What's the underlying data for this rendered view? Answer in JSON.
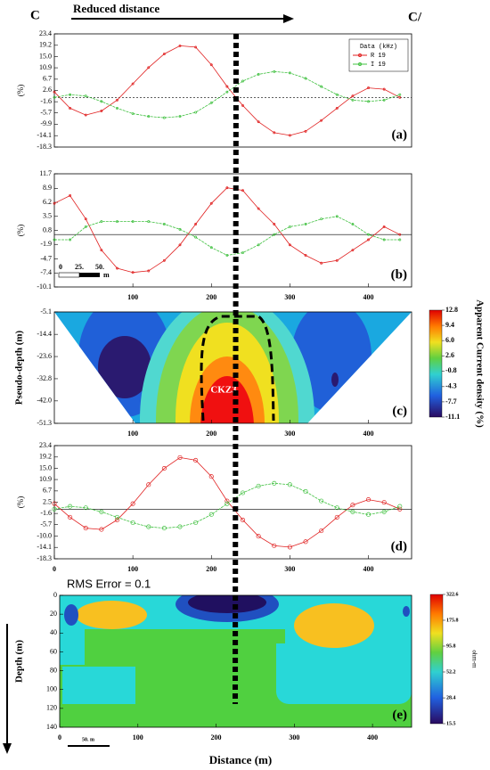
{
  "header": {
    "left": "C",
    "title": "Reduced distance",
    "right": "C/"
  },
  "chart_data": [
    {
      "type": "line",
      "label": "(a)",
      "ylabel": "(%)",
      "xlim": [
        0,
        455
      ],
      "ylim": [
        -18.3,
        23.4
      ],
      "baseline_style": "dotted",
      "yticks": [
        23.4,
        19.2,
        {
          "value": 15,
          "label": "15.0"
        },
        10.9,
        6.7,
        2.6,
        -1.6,
        -5.7,
        -9.9,
        -14.1,
        -18.3
      ],
      "legend_title": "Data (kHz)",
      "legend": "upper right",
      "x": [
        0,
        20,
        40,
        60,
        80,
        100,
        120,
        140,
        160,
        180,
        200,
        220,
        240,
        260,
        280,
        300,
        320,
        340,
        360,
        380,
        400,
        420,
        440
      ],
      "series": [
        {
          "name": "R 19",
          "color": "#e02020",
          "values": [
            2,
            -4,
            -6.5,
            -5,
            -1,
            5,
            11,
            16,
            19,
            18.5,
            12,
            4,
            -3,
            -9,
            -13,
            -14,
            -12.5,
            -8.5,
            -4,
            0.5,
            3.5,
            3,
            0
          ]
        },
        {
          "name": "I 19",
          "color": "#40c040",
          "values": [
            0,
            1,
            0.5,
            -1.5,
            -4,
            -6,
            -7,
            -7.5,
            -7,
            -5.5,
            -2,
            2,
            6,
            8.5,
            9.5,
            9,
            7,
            4,
            1,
            -1,
            -1.5,
            -1,
            1
          ]
        }
      ]
    },
    {
      "type": "line",
      "label": "(b)",
      "ylabel": "(%)",
      "xlim": [
        0,
        455
      ],
      "ylim": [
        -10.1,
        11.7
      ],
      "baseline_style": "solid",
      "yticks": [
        11.7,
        8.9,
        6.2,
        3.5,
        0.8,
        -1.9,
        -4.7,
        -7.4,
        -10.1
      ],
      "xticks": [
        100,
        200,
        300,
        400
      ],
      "scale_bar": {
        "labels": [
          "0",
          "25.",
          "50."
        ],
        "unit": "m"
      },
      "x": [
        0,
        20,
        40,
        60,
        80,
        100,
        120,
        140,
        160,
        180,
        200,
        220,
        240,
        260,
        280,
        300,
        320,
        340,
        360,
        380,
        400,
        420,
        440
      ],
      "series": [
        {
          "name": "R",
          "color": "#e02020",
          "values": [
            6,
            7.5,
            3,
            -3,
            -6.5,
            -7.3,
            -7,
            -5,
            -2,
            2,
            6,
            9,
            8.5,
            5,
            2,
            -2,
            -4,
            -5.5,
            -5,
            -3,
            -1,
            1.5,
            0
          ]
        },
        {
          "name": "I",
          "color": "#40c040",
          "values": [
            -1,
            -1,
            1.5,
            2.5,
            2.5,
            2.5,
            2.5,
            2,
            1,
            -0.5,
            -2.5,
            -4,
            -3.5,
            -2,
            0,
            1.5,
            2,
            3,
            3.5,
            2,
            0,
            -1,
            -1
          ]
        }
      ]
    },
    {
      "type": "contour",
      "label": "(c)",
      "ylabel": "Pseudo-depth (m)",
      "xlim": [
        0,
        455
      ],
      "ylim": [
        -51.3,
        -5.1
      ],
      "yticks": [
        -5.1,
        -14.4,
        -23.6,
        -32.8,
        {
          "value": -42,
          "label": "-42.0"
        },
        -51.3
      ],
      "xticks": [
        100,
        200,
        300,
        400
      ],
      "annotation": "CKZ3",
      "colorbar": {
        "label": "Apparent Current density (%)",
        "lim": [
          -11.1,
          12.8
        ],
        "ticks": [
          12.8,
          9.4,
          {
            "value": 6,
            "label": "6.0"
          },
          2.6,
          -0.8,
          -4.3,
          -7.7,
          -11.1
        ]
      }
    },
    {
      "type": "line",
      "label": "(d)",
      "ylabel": "(%)",
      "xlim": [
        0,
        455
      ],
      "ylim": [
        -18.3,
        23.4
      ],
      "baseline_style": "solid",
      "yticks": [
        23.4,
        19.2,
        {
          "value": 15,
          "label": "15.0"
        },
        10.9,
        6.7,
        2.5,
        -1.6,
        -5.7,
        {
          "value": -10,
          "label": "-10.0"
        },
        -14.1,
        -18.3
      ],
      "xticks": [
        0,
        100,
        200,
        300,
        400
      ],
      "annotation": "RMS Error = 0.1",
      "x": [
        0,
        20,
        40,
        60,
        80,
        100,
        120,
        140,
        160,
        180,
        200,
        220,
        240,
        260,
        280,
        300,
        320,
        340,
        360,
        380,
        400,
        420,
        440
      ],
      "series": [
        {
          "name": "R",
          "color": "#e02020",
          "values": [
            2,
            -3,
            -7,
            -7.5,
            -4,
            2,
            9,
            15,
            19,
            18,
            12,
            3,
            -4,
            -10,
            -13.5,
            -14,
            -12,
            -8,
            -3,
            1.5,
            3.5,
            2.5,
            0
          ]
        },
        {
          "name": "I",
          "color": "#40c040",
          "values": [
            0,
            1,
            0.5,
            -1,
            -3,
            -5,
            -6.5,
            -7,
            -6.5,
            -5,
            -2,
            2,
            6,
            8.5,
            9.5,
            9,
            6.5,
            3,
            0.5,
            -1,
            -2,
            -1,
            1
          ]
        }
      ]
    },
    {
      "type": "section",
      "label": "(e)",
      "ylabel": "Depth (m)",
      "xlabel": "Distance (m)",
      "xlim": [
        0,
        450
      ],
      "ylim": [
        0,
        140
      ],
      "y_inverted": true,
      "yticks": [
        0,
        20,
        40,
        60,
        80,
        100,
        120,
        140
      ],
      "xticks": [
        0,
        100,
        200,
        300,
        400
      ],
      "scale_bar": {
        "labels": [
          "50. m"
        ]
      },
      "colorbar": {
        "label": "ohm-m",
        "log": true,
        "lim": [
          15.5,
          322.6
        ],
        "ticks": [
          322.6,
          175.8,
          95.8,
          52.2,
          28.4,
          15.5
        ]
      }
    }
  ]
}
